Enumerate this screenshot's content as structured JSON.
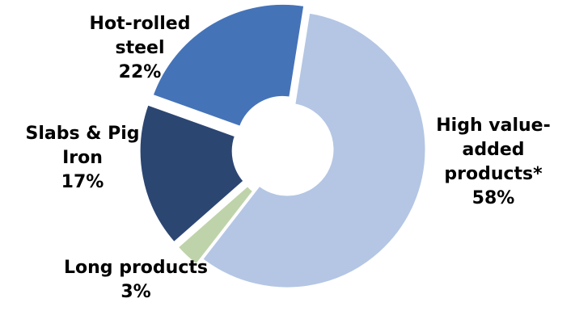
{
  "chart_data": {
    "type": "pie",
    "donut": true,
    "title": "",
    "legend": "none",
    "slices": [
      {
        "label_lines": [
          "High value-",
          "added",
          "products*"
        ],
        "value": 58,
        "value_label": "58%",
        "color": "#b4c6e4"
      },
      {
        "label_lines": [
          "Long products"
        ],
        "value": 3,
        "value_label": "3%",
        "color": "#bfd3aa"
      },
      {
        "label_lines": [
          "Slabs & Pig",
          "Iron"
        ],
        "value": 17,
        "value_label": "17%",
        "color": "#2c4672"
      },
      {
        "label_lines": [
          "Hot-rolled",
          "steel"
        ],
        "value": 22,
        "value_label": "22%",
        "color": "#4573b8"
      }
    ]
  }
}
